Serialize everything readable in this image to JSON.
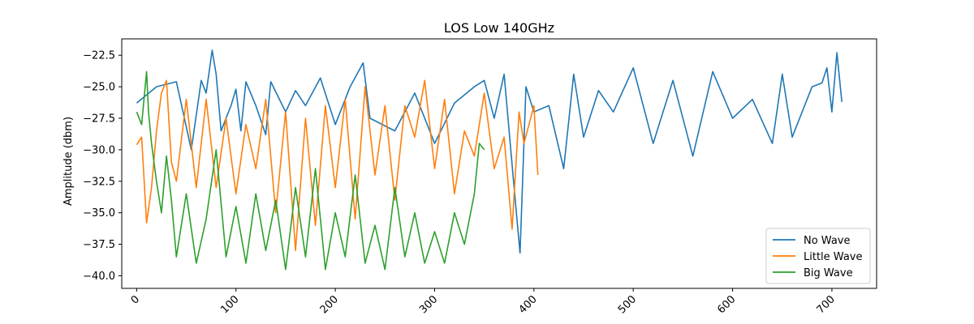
{
  "chart_data": {
    "type": "line",
    "title": "LOS Low 140GHz",
    "xlabel": "",
    "ylabel": "Amplitude (dbm)",
    "xlim": [
      -15,
      745
    ],
    "ylim": [
      -41,
      -21.2
    ],
    "xticks": [
      0,
      100,
      200,
      300,
      400,
      500,
      600,
      700
    ],
    "yticks": [
      -22.5,
      -25.0,
      -27.5,
      -30.0,
      -32.5,
      -35.0,
      -37.5,
      -40.0
    ],
    "ytick_labels": [
      "−22.5",
      "−25.0",
      "−27.5",
      "−30.0",
      "−32.5",
      "−35.0",
      "−37.5",
      "−40.0"
    ],
    "grid": false,
    "legend_position": "bottom-right",
    "series": [
      {
        "name": "No Wave",
        "color": "#1f77b4",
        "x": [
          0,
          20,
          40,
          55,
          65,
          70,
          76,
          80,
          85,
          95,
          100,
          105,
          110,
          120,
          130,
          135,
          150,
          160,
          170,
          185,
          200,
          215,
          228,
          235,
          260,
          280,
          300,
          320,
          340,
          350,
          360,
          370,
          380,
          386,
          392,
          400,
          415,
          430,
          440,
          450,
          465,
          480,
          500,
          520,
          540,
          560,
          580,
          600,
          620,
          640,
          650,
          660,
          680,
          690,
          695,
          700,
          705,
          710
        ],
        "values": [
          -26.3,
          -25.0,
          -24.6,
          -30.0,
          -24.5,
          -25.5,
          -22.1,
          -24.0,
          -28.5,
          -26.5,
          -25.2,
          -28.5,
          -24.6,
          -26.5,
          -28.8,
          -24.6,
          -27.0,
          -25.3,
          -26.5,
          -24.3,
          -28.0,
          -25.0,
          -23.1,
          -27.5,
          -28.5,
          -25.5,
          -29.5,
          -26.3,
          -25.0,
          -24.5,
          -27.5,
          -24.0,
          -33.0,
          -38.2,
          -25.0,
          -27.0,
          -26.5,
          -31.5,
          -24.0,
          -29.0,
          -25.3,
          -27.0,
          -23.5,
          -29.5,
          -24.5,
          -30.5,
          -23.8,
          -27.5,
          -26.0,
          -29.5,
          -24.0,
          -29.0,
          -25.0,
          -24.7,
          -23.5,
          -27.0,
          -22.3,
          -26.2
        ]
      },
      {
        "name": "Little Wave",
        "color": "#ff7f0e",
        "x": [
          0,
          5,
          10,
          15,
          20,
          25,
          30,
          35,
          40,
          50,
          60,
          70,
          80,
          90,
          100,
          110,
          120,
          130,
          140,
          150,
          160,
          170,
          180,
          190,
          200,
          210,
          220,
          230,
          240,
          250,
          260,
          270,
          280,
          290,
          300,
          310,
          320,
          330,
          340,
          350,
          360,
          370,
          378,
          385,
          390,
          395,
          400,
          404
        ],
        "values": [
          -29.6,
          -29.0,
          -35.8,
          -33.0,
          -28.5,
          -25.5,
          -24.5,
          -31.0,
          -32.5,
          -26.0,
          -33.0,
          -26.0,
          -33.0,
          -27.5,
          -33.5,
          -28.0,
          -31.5,
          -26.0,
          -35.0,
          -27.0,
          -38.0,
          -27.5,
          -36.0,
          -26.5,
          -33.0,
          -26.0,
          -35.5,
          -25.0,
          -32.0,
          -26.5,
          -34.0,
          -26.5,
          -29.0,
          -24.5,
          -31.5,
          -26.0,
          -33.5,
          -28.5,
          -30.5,
          -25.5,
          -31.5,
          -29.0,
          -36.3,
          -27.0,
          -29.5,
          -28.0,
          -26.5,
          -32.0
        ]
      },
      {
        "name": "Big Wave",
        "color": "#2ca02c",
        "x": [
          0,
          5,
          10,
          12,
          15,
          20,
          25,
          30,
          35,
          40,
          50,
          60,
          70,
          80,
          90,
          100,
          110,
          120,
          130,
          140,
          150,
          160,
          170,
          180,
          190,
          200,
          210,
          220,
          230,
          240,
          250,
          260,
          270,
          280,
          290,
          300,
          310,
          320,
          330,
          340,
          345,
          350
        ],
        "values": [
          -27.0,
          -28.0,
          -23.8,
          -27.0,
          -29.5,
          -32.5,
          -35.0,
          -30.5,
          -34.0,
          -38.5,
          -33.5,
          -39.0,
          -35.5,
          -30.0,
          -38.5,
          -34.5,
          -39.0,
          -33.5,
          -38.0,
          -34.0,
          -39.5,
          -33.0,
          -38.5,
          -31.5,
          -39.5,
          -35.0,
          -38.5,
          -32.0,
          -39.0,
          -36.0,
          -39.5,
          -33.0,
          -38.5,
          -35.0,
          -39.0,
          -36.5,
          -39.0,
          -35.0,
          -37.5,
          -33.5,
          -29.5,
          -30.0
        ]
      }
    ]
  }
}
